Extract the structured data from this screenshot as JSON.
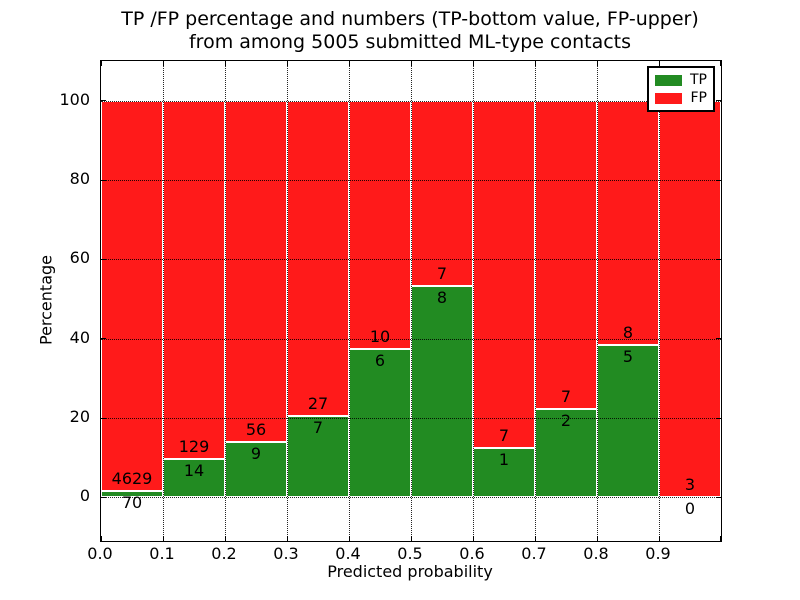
{
  "figure": {
    "title_line1": "TP /FP percentage and numbers (TP-bottom value, FP-upper)",
    "title_line2": "from among 5005 submitted ML-type contacts"
  },
  "chart_data": {
    "type": "bar",
    "subtype": "stacked-percentage-histogram",
    "title": "TP /FP percentage and numbers (TP-bottom value, FP-upper)\nfrom among 5005 submitted ML-type contacts",
    "xlabel": "Predicted probability",
    "ylabel": "Percentage",
    "total_contacts": 5005,
    "x_tick_labels": [
      "0.0",
      "0.1",
      "0.2",
      "0.3",
      "0.4",
      "0.5",
      "0.6",
      "0.7",
      "0.8",
      "0.9"
    ],
    "y_ticks": [
      0,
      20,
      40,
      60,
      80,
      100
    ],
    "xlim": [
      0.0,
      1.0
    ],
    "ylim": [
      -11,
      110
    ],
    "bin_width": 0.1,
    "grid": "dotted",
    "bar_edge_color": "#ffffff",
    "categories": [
      "0.0-0.1",
      "0.1-0.2",
      "0.2-0.3",
      "0.3-0.4",
      "0.4-0.5",
      "0.5-0.6",
      "0.6-0.7",
      "0.7-0.8",
      "0.8-0.9",
      "0.9-1.0"
    ],
    "series": [
      {
        "name": "TP",
        "color": "#228b22",
        "counts": [
          70,
          14,
          9,
          7,
          6,
          8,
          1,
          2,
          5,
          0
        ]
      },
      {
        "name": "FP",
        "color": "#ff1a1a",
        "counts": [
          4629,
          129,
          56,
          27,
          10,
          7,
          7,
          7,
          8,
          3
        ]
      }
    ],
    "tp_percent": [
      1.49,
      9.79,
      13.85,
      20.59,
      37.5,
      53.33,
      12.5,
      22.22,
      38.46,
      0.0
    ],
    "legend": {
      "position": "upper right",
      "entries": [
        {
          "label": "TP",
          "color": "#228b22"
        },
        {
          "label": "FP",
          "color": "#ff1a1a"
        }
      ]
    }
  }
}
